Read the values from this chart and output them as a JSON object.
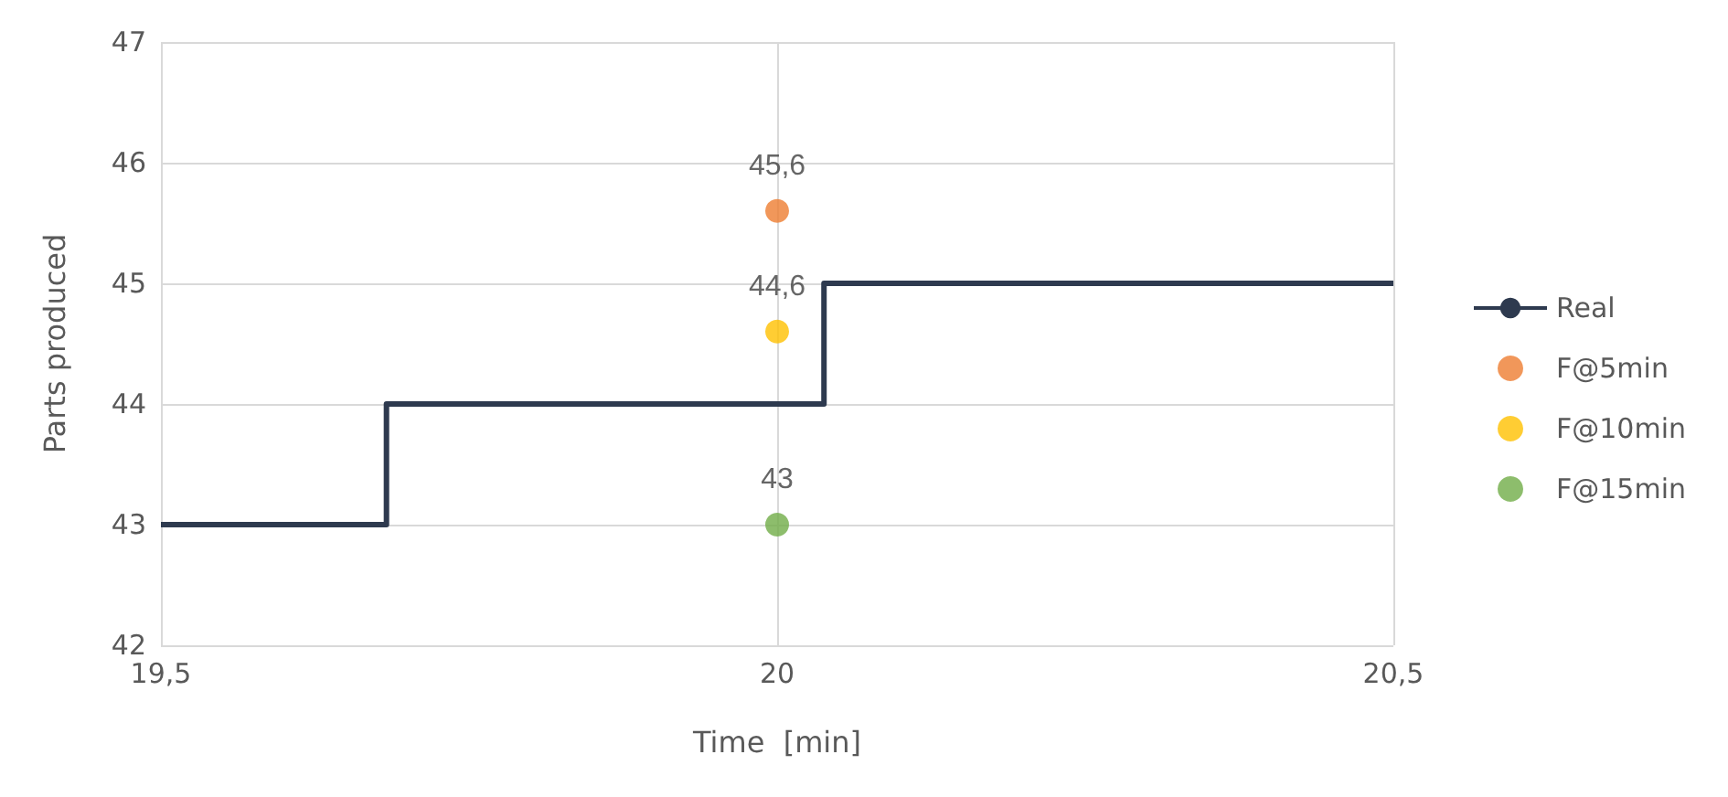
{
  "chart_data": {
    "type": "step",
    "xlabel": "Time  [min]",
    "ylabel": "Parts produced",
    "xlim": [
      19.5,
      20.5
    ],
    "xticks": [
      {
        "value": 19.5,
        "label": "19,5"
      },
      20,
      {
        "value": 20.5,
        "label": "20,5"
      }
    ],
    "ylim": [
      42,
      47
    ],
    "yticks": [
      42,
      43,
      44,
      45,
      46,
      47
    ],
    "grid": true,
    "legend": "right",
    "series": [
      {
        "name": "Real",
        "color": "#2e3a4f",
        "x": [
          19.5,
          19.683,
          20.038,
          20.5
        ],
        "values": [
          43,
          44,
          45,
          45
        ]
      },
      {
        "name": "F@5min",
        "type": "scatter",
        "marker": "circle",
        "color": "#ed7d31",
        "x": [
          20
        ],
        "values": [
          45.6
        ],
        "value_labels": [
          "45,6"
        ]
      },
      {
        "name": "F@10min",
        "type": "scatter",
        "marker": "circle",
        "color": "#ffc000",
        "x": [
          20
        ],
        "values": [
          44.6
        ],
        "value_labels": [
          "44,6"
        ]
      },
      {
        "name": "F@15min",
        "type": "scatter",
        "marker": "circle",
        "color": "#70ad47",
        "x": [
          20
        ],
        "values": [
          43
        ],
        "value_labels": [
          "43"
        ]
      }
    ]
  }
}
